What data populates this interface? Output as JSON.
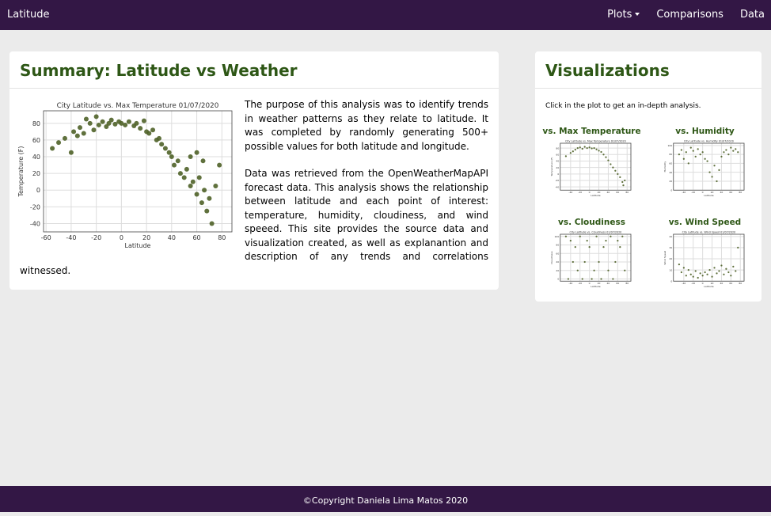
{
  "navbar": {
    "brand": "Latitude",
    "links": [
      "Plots",
      "Comparisons",
      "Data"
    ]
  },
  "summary": {
    "title": "Summary: Latitude vs Weather",
    "paragraphs": [
      "The purpose of this analysis was to identify trends in weather patterns as they relate to latitude. It was completed by randomly generating 500+ possible values for both latitude and longitude.",
      "Data was retrieved from the OpenWeatherMapAPI forecast data. This analysis shows the relationship between latitude and each point of interest: temperature, humidity, cloudiness, and wind speeed. This site provides the source data and visualization created, as well as explanantion and description of any trends and correlations witnessed."
    ]
  },
  "visualizations": {
    "title": "Visualizations",
    "intro": "Click in the plot to get an in-depth analysis.",
    "labels": [
      "vs. Max Temperature",
      "vs. Humidity",
      "vs. Cloudiness",
      "vs. Wind Speed"
    ]
  },
  "footer": "©Copyright Daniela Lima Matos 2020",
  "chart_data": [
    {
      "type": "scatter",
      "title": "City Latitude vs. Max Temperature 01/07/2020",
      "x_label": "Latitude",
      "y_label": "Temperature (F)",
      "color": "#4f6228",
      "grid": true,
      "xlim": [
        -62,
        88
      ],
      "xticks": [
        -60,
        -40,
        -20,
        0,
        20,
        40,
        60,
        80
      ],
      "ylim": [
        -50,
        95
      ],
      "yticks": [
        -40,
        -20,
        0,
        20,
        40,
        60,
        80
      ],
      "x": [
        -55,
        -50,
        -45,
        -40,
        -38,
        -35,
        -33,
        -30,
        -28,
        -25,
        -22,
        -20,
        -18,
        -15,
        -12,
        -10,
        -8,
        -5,
        -2,
        0,
        3,
        6,
        10,
        12,
        15,
        18,
        20,
        22,
        25,
        28,
        30,
        32,
        35,
        38,
        40,
        42,
        45,
        47,
        50,
        52,
        55,
        57,
        60,
        62,
        64,
        66,
        68,
        70,
        72,
        75,
        78,
        60,
        65,
        55
      ],
      "values": [
        50,
        57,
        62,
        45,
        70,
        65,
        75,
        68,
        85,
        80,
        72,
        88,
        78,
        82,
        76,
        80,
        84,
        79,
        82,
        80,
        78,
        82,
        77,
        80,
        74,
        83,
        70,
        68,
        72,
        60,
        62,
        55,
        50,
        45,
        40,
        30,
        35,
        20,
        15,
        25,
        5,
        10,
        -5,
        15,
        -15,
        0,
        -25,
        -10,
        -40,
        5,
        30,
        45,
        35,
        40
      ]
    },
    {
      "type": "scatter",
      "title": "City Latitude vs. Max Temperature 01/07/2020",
      "x_label": "Latitude",
      "y_label": "Temperature (F)",
      "color": "#4f6228",
      "grid": true,
      "xlim": [
        -62,
        88
      ],
      "xticks": [
        -40,
        -20,
        0,
        20,
        40,
        60,
        80
      ],
      "ylim": [
        -50,
        95
      ],
      "yticks": [
        -40,
        -20,
        0,
        20,
        40,
        60,
        80
      ],
      "x": [
        -50,
        -40,
        -35,
        -30,
        -25,
        -20,
        -15,
        -10,
        -5,
        0,
        5,
        10,
        15,
        20,
        25,
        30,
        35,
        40,
        45,
        50,
        55,
        60,
        65,
        70,
        72,
        75
      ],
      "values": [
        55,
        65,
        70,
        75,
        80,
        82,
        78,
        84,
        80,
        82,
        79,
        80,
        76,
        72,
        68,
        60,
        52,
        42,
        30,
        20,
        10,
        0,
        -10,
        -25,
        -35,
        -20
      ]
    },
    {
      "type": "scatter",
      "title": "City Latitude vs. Humidity 01/07/2020",
      "x_label": "Latitude",
      "y_label": "Humidity",
      "color": "#4f6228",
      "grid": true,
      "xlim": [
        -62,
        88
      ],
      "xticks": [
        -40,
        -20,
        0,
        20,
        40,
        60,
        80
      ],
      "ylim": [
        0,
        105
      ],
      "yticks": [
        0,
        20,
        40,
        60,
        80,
        100
      ],
      "x": [
        -50,
        -45,
        -40,
        -35,
        -30,
        -25,
        -20,
        -15,
        -10,
        -5,
        0,
        5,
        10,
        15,
        20,
        25,
        30,
        35,
        40,
        45,
        50,
        55,
        60,
        65,
        70,
        75
      ],
      "values": [
        80,
        90,
        70,
        85,
        60,
        95,
        88,
        75,
        92,
        80,
        85,
        70,
        65,
        40,
        30,
        55,
        20,
        45,
        75,
        85,
        90,
        80,
        95,
        88,
        92,
        85
      ]
    },
    {
      "type": "scatter",
      "title": "City Latitude vs. Cloudiness 01/07/2020",
      "x_label": "Latitude",
      "y_label": "Cloudiness",
      "color": "#4f6228",
      "grid": true,
      "xlim": [
        -62,
        88
      ],
      "xticks": [
        -40,
        -20,
        0,
        20,
        40,
        60,
        80
      ],
      "ylim": [
        -5,
        105
      ],
      "yticks": [
        0,
        20,
        40,
        60,
        80,
        100
      ],
      "x": [
        -50,
        -45,
        -40,
        -35,
        -30,
        -25,
        -20,
        -15,
        -10,
        -5,
        0,
        5,
        10,
        15,
        20,
        25,
        30,
        35,
        40,
        45,
        50,
        55,
        60,
        65,
        70,
        75
      ],
      "values": [
        100,
        0,
        90,
        40,
        75,
        20,
        100,
        0,
        40,
        90,
        75,
        0,
        20,
        100,
        40,
        0,
        75,
        90,
        20,
        100,
        0,
        40,
        90,
        75,
        100,
        20
      ]
    },
    {
      "type": "scatter",
      "title": "City Latitude vs. Wind Speed 01/07/2020",
      "x_label": "Latitude",
      "y_label": "Wind Speed",
      "color": "#4f6228",
      "grid": true,
      "xlim": [
        -62,
        88
      ],
      "xticks": [
        -40,
        -20,
        0,
        20,
        40,
        60,
        80
      ],
      "ylim": [
        0,
        42
      ],
      "yticks": [
        0,
        10,
        20,
        30,
        40
      ],
      "x": [
        -50,
        -45,
        -40,
        -35,
        -30,
        -25,
        -20,
        -15,
        -10,
        -5,
        0,
        5,
        10,
        15,
        20,
        25,
        30,
        35,
        40,
        45,
        50,
        55,
        60,
        65,
        70,
        75
      ],
      "values": [
        15,
        8,
        12,
        5,
        10,
        6,
        4,
        9,
        3,
        7,
        5,
        8,
        6,
        10,
        4,
        12,
        7,
        9,
        14,
        6,
        11,
        8,
        5,
        13,
        9,
        30
      ]
    }
  ]
}
